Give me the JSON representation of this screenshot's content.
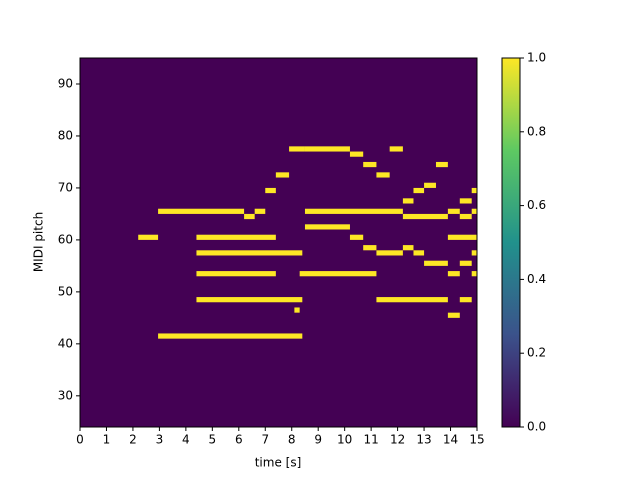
{
  "chart_data": {
    "type": "pianoroll",
    "xlabel": "time [s]",
    "ylabel": "MIDI pitch",
    "xlim": [
      0,
      15
    ],
    "ylim": [
      24,
      95
    ],
    "xticks": [
      0,
      1,
      2,
      3,
      4,
      5,
      6,
      7,
      8,
      9,
      10,
      11,
      12,
      13,
      14,
      15
    ],
    "yticks": [
      30,
      40,
      50,
      60,
      70,
      80,
      90
    ],
    "background_color": "#440154",
    "note_color": "#fde725",
    "colorbar": {
      "lim": [
        0,
        1
      ],
      "colormap": "viridis",
      "ticks": [
        {
          "value": 0,
          "label": "0.0"
        },
        {
          "value": 0.2,
          "label": "0.2"
        },
        {
          "value": 0.4,
          "label": "0.4"
        },
        {
          "value": 0.6,
          "label": "0.6"
        },
        {
          "value": 0.8,
          "label": "0.8"
        },
        {
          "value": 1,
          "label": "1.0"
        }
      ]
    },
    "notes": [
      {
        "pitch": 77,
        "start": 7.9,
        "end": 8.5
      },
      {
        "pitch": 77,
        "start": 8.5,
        "end": 10.2
      },
      {
        "pitch": 77,
        "start": 11.7,
        "end": 12.2
      },
      {
        "pitch": 76,
        "start": 10.2,
        "end": 10.7
      },
      {
        "pitch": 74,
        "start": 10.7,
        "end": 11.2
      },
      {
        "pitch": 74,
        "start": 13.45,
        "end": 13.9
      },
      {
        "pitch": 72,
        "start": 7.4,
        "end": 7.9
      },
      {
        "pitch": 72,
        "start": 11.2,
        "end": 11.7
      },
      {
        "pitch": 70,
        "start": 13.0,
        "end": 13.45
      },
      {
        "pitch": 69,
        "start": 7.0,
        "end": 7.4
      },
      {
        "pitch": 69,
        "start": 12.6,
        "end": 13.0
      },
      {
        "pitch": 69,
        "start": 14.8,
        "end": 15
      },
      {
        "pitch": 67,
        "start": 12.2,
        "end": 12.6
      },
      {
        "pitch": 67,
        "start": 14.35,
        "end": 14.8
      },
      {
        "pitch": 65,
        "start": 2.95,
        "end": 6.2
      },
      {
        "pitch": 65,
        "start": 6.6,
        "end": 7.0
      },
      {
        "pitch": 65,
        "start": 8.5,
        "end": 12.2
      },
      {
        "pitch": 65,
        "start": 13.9,
        "end": 14.35
      },
      {
        "pitch": 65,
        "start": 14.8,
        "end": 15
      },
      {
        "pitch": 64,
        "start": 6.2,
        "end": 6.6
      },
      {
        "pitch": 64,
        "start": 12.2,
        "end": 13.9
      },
      {
        "pitch": 64,
        "start": 14.35,
        "end": 14.8
      },
      {
        "pitch": 62,
        "start": 8.5,
        "end": 10.2
      },
      {
        "pitch": 60,
        "start": 2.2,
        "end": 2.95
      },
      {
        "pitch": 60,
        "start": 4.4,
        "end": 7.4
      },
      {
        "pitch": 60,
        "start": 10.2,
        "end": 10.7
      },
      {
        "pitch": 60,
        "start": 13.9,
        "end": 15
      },
      {
        "pitch": 58,
        "start": 10.7,
        "end": 11.2
      },
      {
        "pitch": 58,
        "start": 12.2,
        "end": 12.6
      },
      {
        "pitch": 57,
        "start": 4.4,
        "end": 8.4
      },
      {
        "pitch": 57,
        "start": 11.2,
        "end": 12.2
      },
      {
        "pitch": 57,
        "start": 12.6,
        "end": 13.0
      },
      {
        "pitch": 57,
        "start": 14.8,
        "end": 15
      },
      {
        "pitch": 55,
        "start": 13.0,
        "end": 13.9
      },
      {
        "pitch": 55,
        "start": 14.35,
        "end": 14.8
      },
      {
        "pitch": 53,
        "start": 4.4,
        "end": 7.4
      },
      {
        "pitch": 53,
        "start": 8.3,
        "end": 11.2
      },
      {
        "pitch": 53,
        "start": 13.9,
        "end": 14.35
      },
      {
        "pitch": 53,
        "start": 14.8,
        "end": 15
      },
      {
        "pitch": 48,
        "start": 4.4,
        "end": 8.4
      },
      {
        "pitch": 48,
        "start": 11.2,
        "end": 13.9
      },
      {
        "pitch": 48,
        "start": 14.35,
        "end": 14.8
      },
      {
        "pitch": 46,
        "start": 8.1,
        "end": 8.3
      },
      {
        "pitch": 45,
        "start": 13.9,
        "end": 14.35
      },
      {
        "pitch": 41,
        "start": 2.95,
        "end": 8.4
      }
    ]
  }
}
